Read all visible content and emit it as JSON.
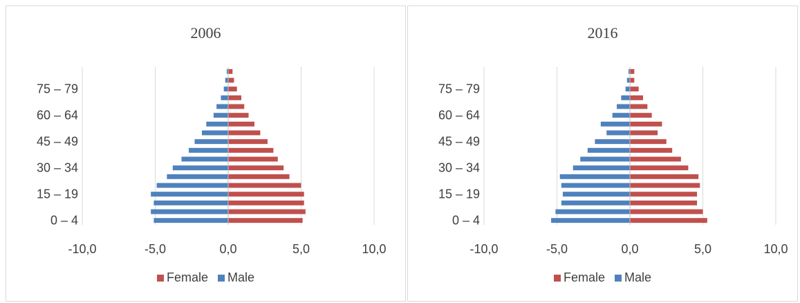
{
  "colors": {
    "female": "#c0504d",
    "male": "#4f81bd",
    "grid": "#d9d9d9",
    "axis_text": "#404040"
  },
  "chart_data": [
    {
      "type": "bar",
      "orientation": "horizontal",
      "title": "2006",
      "xlabel": "",
      "ylabel": "",
      "xlim": [
        -10,
        10
      ],
      "x_ticks": [
        "-10,0",
        "-5,0",
        "0,0",
        "5,0",
        "10,0"
      ],
      "y_tick_labels": [
        "0 – 4",
        "15 – 19",
        "30 – 34",
        "45 – 49",
        "60 – 64",
        "75 – 79"
      ],
      "categories": [
        "0 – 4",
        "5 – 9",
        "10 – 14",
        "15 – 19",
        "20 – 24",
        "25 – 29",
        "30 – 34",
        "35 – 39",
        "40 – 44",
        "45 – 49",
        "50 – 54",
        "55 – 59",
        "60 – 64",
        "65 – 69",
        "70 – 74",
        "75 – 79",
        "80 – 84",
        "85+"
      ],
      "series": [
        {
          "name": "Female",
          "values": [
            5.1,
            5.3,
            5.2,
            5.2,
            5.0,
            4.2,
            3.8,
            3.4,
            3.1,
            2.7,
            2.2,
            1.8,
            1.4,
            1.1,
            0.9,
            0.6,
            0.4,
            0.3
          ]
        },
        {
          "name": "Male",
          "values": [
            -5.1,
            -5.3,
            -5.1,
            -5.3,
            -4.9,
            -4.2,
            -3.8,
            -3.2,
            -2.7,
            -2.3,
            -1.8,
            -1.5,
            -1.0,
            -0.8,
            -0.5,
            -0.3,
            -0.2,
            -0.1
          ]
        }
      ],
      "legend": {
        "position": "bottom",
        "entries": [
          "Female",
          "Male"
        ]
      },
      "grid": true
    },
    {
      "type": "bar",
      "orientation": "horizontal",
      "title": "2016",
      "xlabel": "",
      "ylabel": "",
      "xlim": [
        -10,
        10
      ],
      "x_ticks": [
        "-10,0",
        "-5,0",
        "0,0",
        "5,0",
        "10,0"
      ],
      "y_tick_labels": [
        "0 – 4",
        "15 – 19",
        "30 – 34",
        "45 – 49",
        "60 – 64",
        "75 – 79"
      ],
      "categories": [
        "0 – 4",
        "5 – 9",
        "10 – 14",
        "15 – 19",
        "20 – 24",
        "25 – 29",
        "30 – 34",
        "35 – 39",
        "40 – 44",
        "45 – 49",
        "50 – 54",
        "55 – 59",
        "60 – 64",
        "65 – 69",
        "70 – 74",
        "75 – 79",
        "80 – 84",
        "85+"
      ],
      "series": [
        {
          "name": "Female",
          "values": [
            5.3,
            5.0,
            4.6,
            4.6,
            4.8,
            4.7,
            4.0,
            3.5,
            2.9,
            2.5,
            1.9,
            2.2,
            1.5,
            1.2,
            0.9,
            0.6,
            0.3,
            0.3
          ]
        },
        {
          "name": "Male",
          "values": [
            -5.4,
            -5.1,
            -4.7,
            -4.6,
            -4.7,
            -4.8,
            -3.9,
            -3.4,
            -2.9,
            -2.4,
            -1.6,
            -2.0,
            -1.2,
            -0.9,
            -0.6,
            -0.3,
            -0.2,
            -0.1
          ]
        }
      ],
      "legend": {
        "position": "bottom",
        "entries": [
          "Female",
          "Male"
        ]
      },
      "grid": true
    }
  ]
}
